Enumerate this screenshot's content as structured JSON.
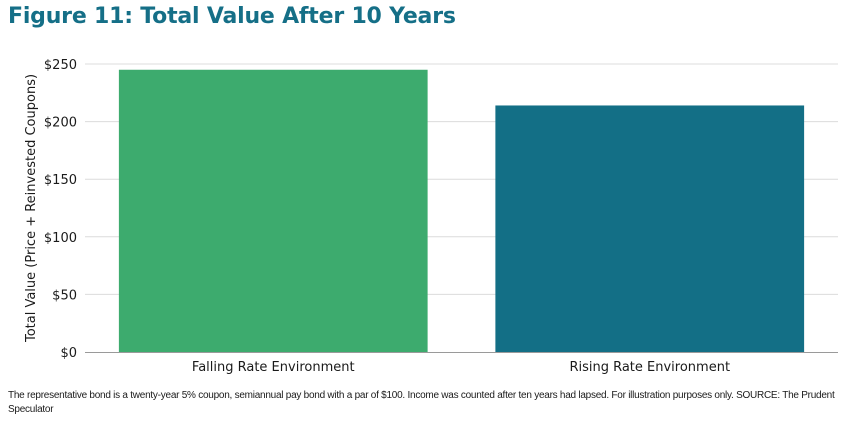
{
  "title": "Figure 11: Total Value After 10 Years",
  "footnote": "The representative bond is a twenty-year 5% coupon, semiannual pay bond with a par of $100.  Income was counted after ten years had lapsed. For illustration purposes only. SOURCE: The Prudent Speculator",
  "chart_data": {
    "type": "bar",
    "title": "Figure 11: Total Value After 10 Years",
    "xlabel": "",
    "ylabel": "Total Value (Price + Reinvested Coupons)",
    "categories": [
      "Falling Rate Environment",
      "Rising Rate Environment"
    ],
    "values": [
      245,
      214
    ],
    "ylim": [
      0,
      250
    ],
    "yticks": [
      0,
      50,
      100,
      150,
      200,
      250
    ],
    "ytick_labels": [
      "$0",
      "$50",
      "$100",
      "$150",
      "$200",
      "$250"
    ],
    "grid": true,
    "legend": "none",
    "colors": [
      "#3dab6e",
      "#136f86"
    ]
  }
}
